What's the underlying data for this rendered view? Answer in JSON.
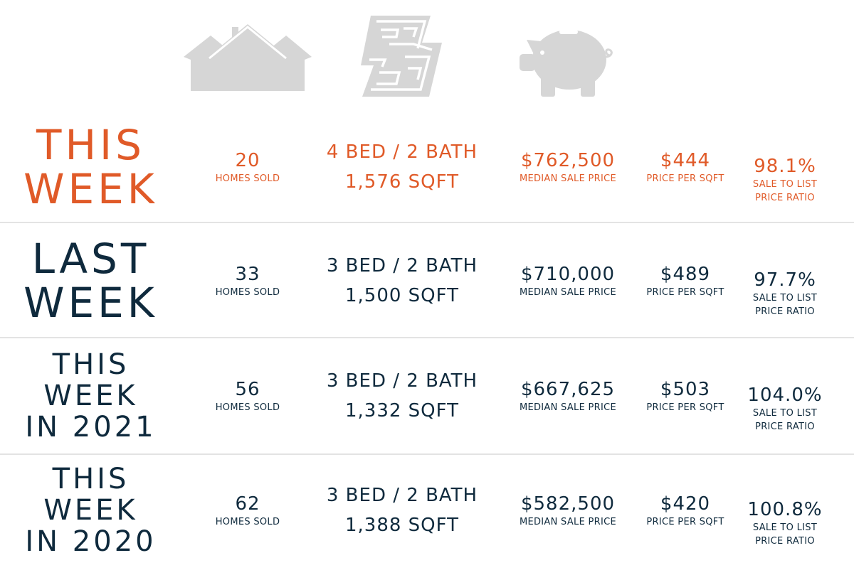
{
  "colors": {
    "accent": "#e05a28",
    "navy": "#0f2a3d",
    "icon_gray": "#d6d6d6",
    "divider": "#e3e3e3"
  },
  "icons": [
    "houses-icon",
    "floor-plan-icon",
    "piggy-bank-icon"
  ],
  "rows": [
    {
      "period_lines": [
        "THIS",
        "WEEK"
      ],
      "homes_sold": "20",
      "homes_sold_label": "HOMES SOLD",
      "beds_baths": "4 BED / 2 BATH",
      "sqft": "1,576 SQFT",
      "median_price": "$762,500",
      "median_price_label": "MEDIAN SALE PRICE",
      "price_per_sqft": "$444",
      "price_per_sqft_label": "PRICE PER SQFT",
      "ratio": "98.1%",
      "ratio_label_1": "SALE TO LIST",
      "ratio_label_2": "PRICE RATIO",
      "color": "accent"
    },
    {
      "period_lines": [
        "LAST",
        "WEEK"
      ],
      "homes_sold": "33",
      "homes_sold_label": "HOMES SOLD",
      "beds_baths": "3 BED / 2 BATH",
      "sqft": "1,500 SQFT",
      "median_price": "$710,000",
      "median_price_label": "MEDIAN SALE PRICE",
      "price_per_sqft": "$489",
      "price_per_sqft_label": "PRICE PER SQFT",
      "ratio": "97.7%",
      "ratio_label_1": "SALE TO LIST",
      "ratio_label_2": "PRICE RATIO",
      "color": "navy"
    },
    {
      "period_lines": [
        "THIS WEEK",
        "IN 2021"
      ],
      "homes_sold": "56",
      "homes_sold_label": "HOMES SOLD",
      "beds_baths": "3 BED / 2 BATH",
      "sqft": "1,332 SQFT",
      "median_price": "$667,625",
      "median_price_label": "MEDIAN SALE PRICE",
      "price_per_sqft": "$503",
      "price_per_sqft_label": "PRICE PER SQFT",
      "ratio": "104.0%",
      "ratio_label_1": "SALE TO LIST",
      "ratio_label_2": "PRICE RATIO",
      "color": "navy"
    },
    {
      "period_lines": [
        "THIS WEEK",
        "IN 2020"
      ],
      "homes_sold": "62",
      "homes_sold_label": "HOMES SOLD",
      "beds_baths": "3 BED / 2 BATH",
      "sqft": "1,388 SQFT",
      "median_price": "$582,500",
      "median_price_label": "MEDIAN SALE PRICE",
      "price_per_sqft": "$420",
      "price_per_sqft_label": "PRICE PER SQFT",
      "ratio": "100.8%",
      "ratio_label_1": "SALE TO LIST",
      "ratio_label_2": "PRICE RATIO",
      "color": "navy"
    }
  ]
}
